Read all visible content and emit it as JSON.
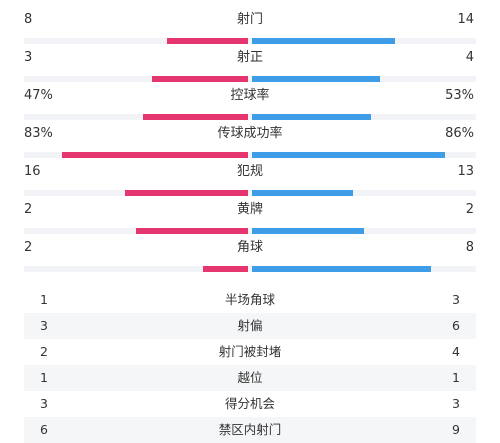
{
  "colors": {
    "home": "#e5366f",
    "away": "#3e9de6",
    "track": "#f1f3f7"
  },
  "bar_stats": [
    {
      "label": "射门",
      "home": "8",
      "away": "14",
      "home_frac": 0.36,
      "away_frac": 0.64
    },
    {
      "label": "射正",
      "home": "3",
      "away": "4",
      "home_frac": 0.43,
      "away_frac": 0.57
    },
    {
      "label": "控球率",
      "home": "47%",
      "away": "53%",
      "home_frac": 0.47,
      "away_frac": 0.53
    },
    {
      "label": "传球成功率",
      "home": "83%",
      "away": "86%",
      "home_frac": 0.83,
      "away_frac": 0.86
    },
    {
      "label": "犯规",
      "home": "16",
      "away": "13",
      "home_frac": 0.55,
      "away_frac": 0.45
    },
    {
      "label": "黄牌",
      "home": "2",
      "away": "2",
      "home_frac": 0.5,
      "away_frac": 0.5
    },
    {
      "label": "角球",
      "home": "2",
      "away": "8",
      "home_frac": 0.2,
      "away_frac": 0.8
    }
  ],
  "table_stats": [
    {
      "label": "半场角球",
      "home": "1",
      "away": "3"
    },
    {
      "label": "射偏",
      "home": "3",
      "away": "6"
    },
    {
      "label": "射门被封堵",
      "home": "2",
      "away": "4"
    },
    {
      "label": "越位",
      "home": "1",
      "away": "1"
    },
    {
      "label": "得分机会",
      "home": "3",
      "away": "3"
    },
    {
      "label": "禁区内射门",
      "home": "6",
      "away": "9"
    }
  ]
}
